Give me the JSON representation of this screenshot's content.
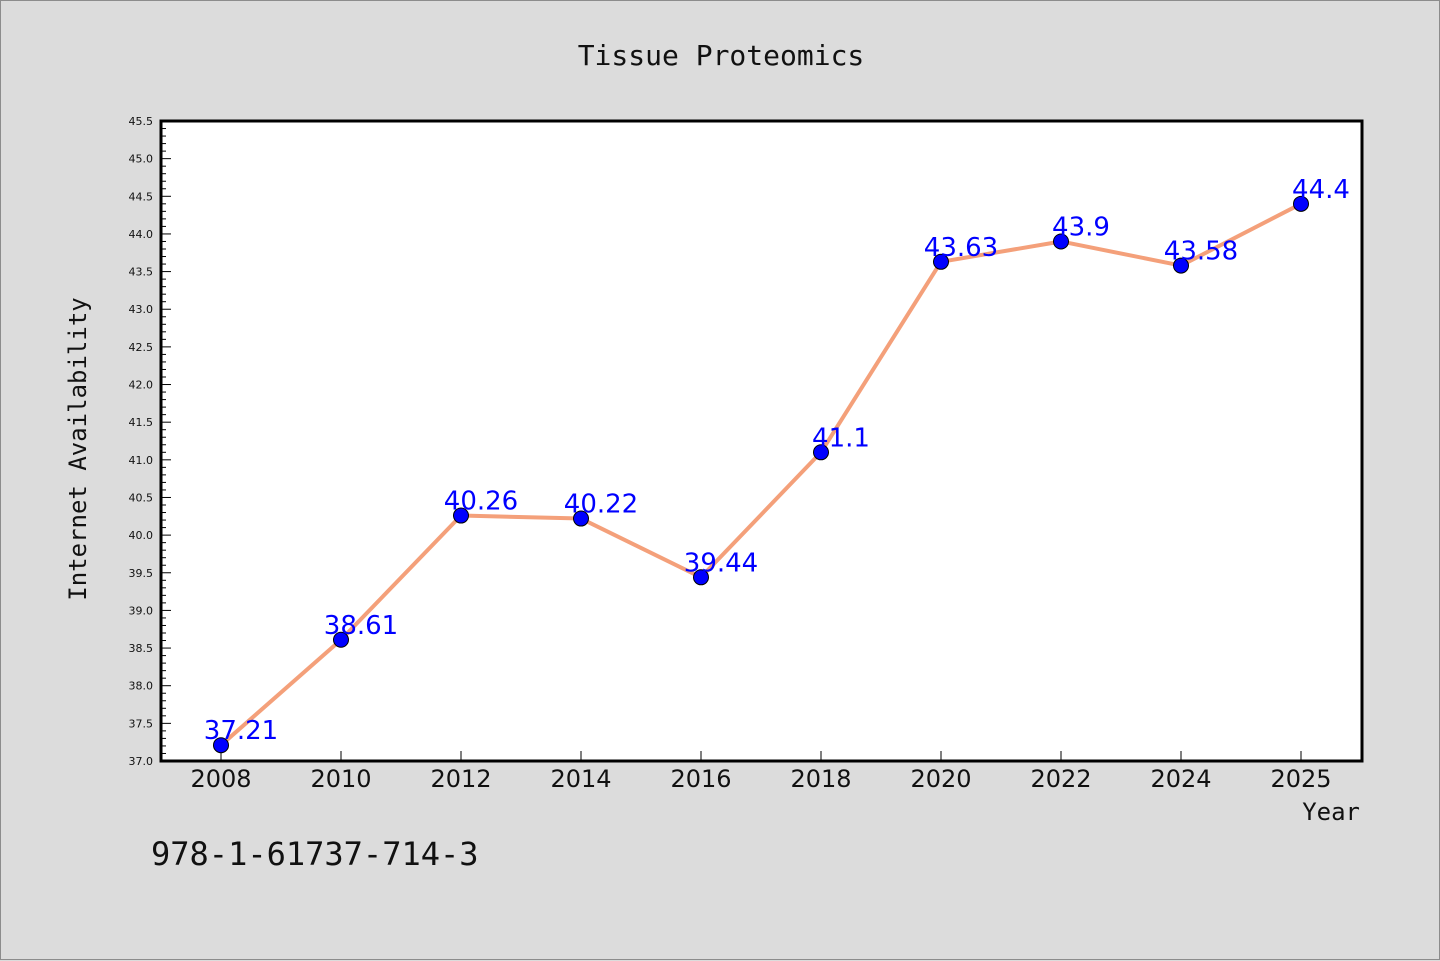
{
  "chart_data": {
    "type": "line",
    "title": "Tissue Proteomics",
    "xlabel": "Year",
    "ylabel": "Internet Availability",
    "categories": [
      "2008",
      "2010",
      "2012",
      "2014",
      "2016",
      "2018",
      "2020",
      "2022",
      "2024",
      "2025"
    ],
    "series": [
      {
        "values": [
          37.21,
          38.61,
          40.26,
          40.22,
          39.44,
          41.1,
          43.63,
          43.9,
          43.58,
          44.4
        ],
        "labels": [
          "37.21",
          "38.61",
          "40.26",
          "40.22",
          "39.44",
          "41.1",
          "43.63",
          "43.9",
          "43.58",
          "44.4"
        ],
        "line_color": "#f4a07a",
        "marker_color": "#0000ff",
        "label_color": "#0000ff"
      }
    ],
    "ylim": [
      37.0,
      45.5
    ],
    "yticks": [
      "37.0",
      "37.5",
      "38.0",
      "38.5",
      "39.0",
      "39.5",
      "40.0",
      "40.5",
      "41.0",
      "41.5",
      "42.0",
      "42.5",
      "43.0",
      "43.5",
      "44.0",
      "44.5",
      "45.0",
      "45.5"
    ],
    "grid": false,
    "legend": "none"
  },
  "footer_text": "978-1-61737-714-3"
}
